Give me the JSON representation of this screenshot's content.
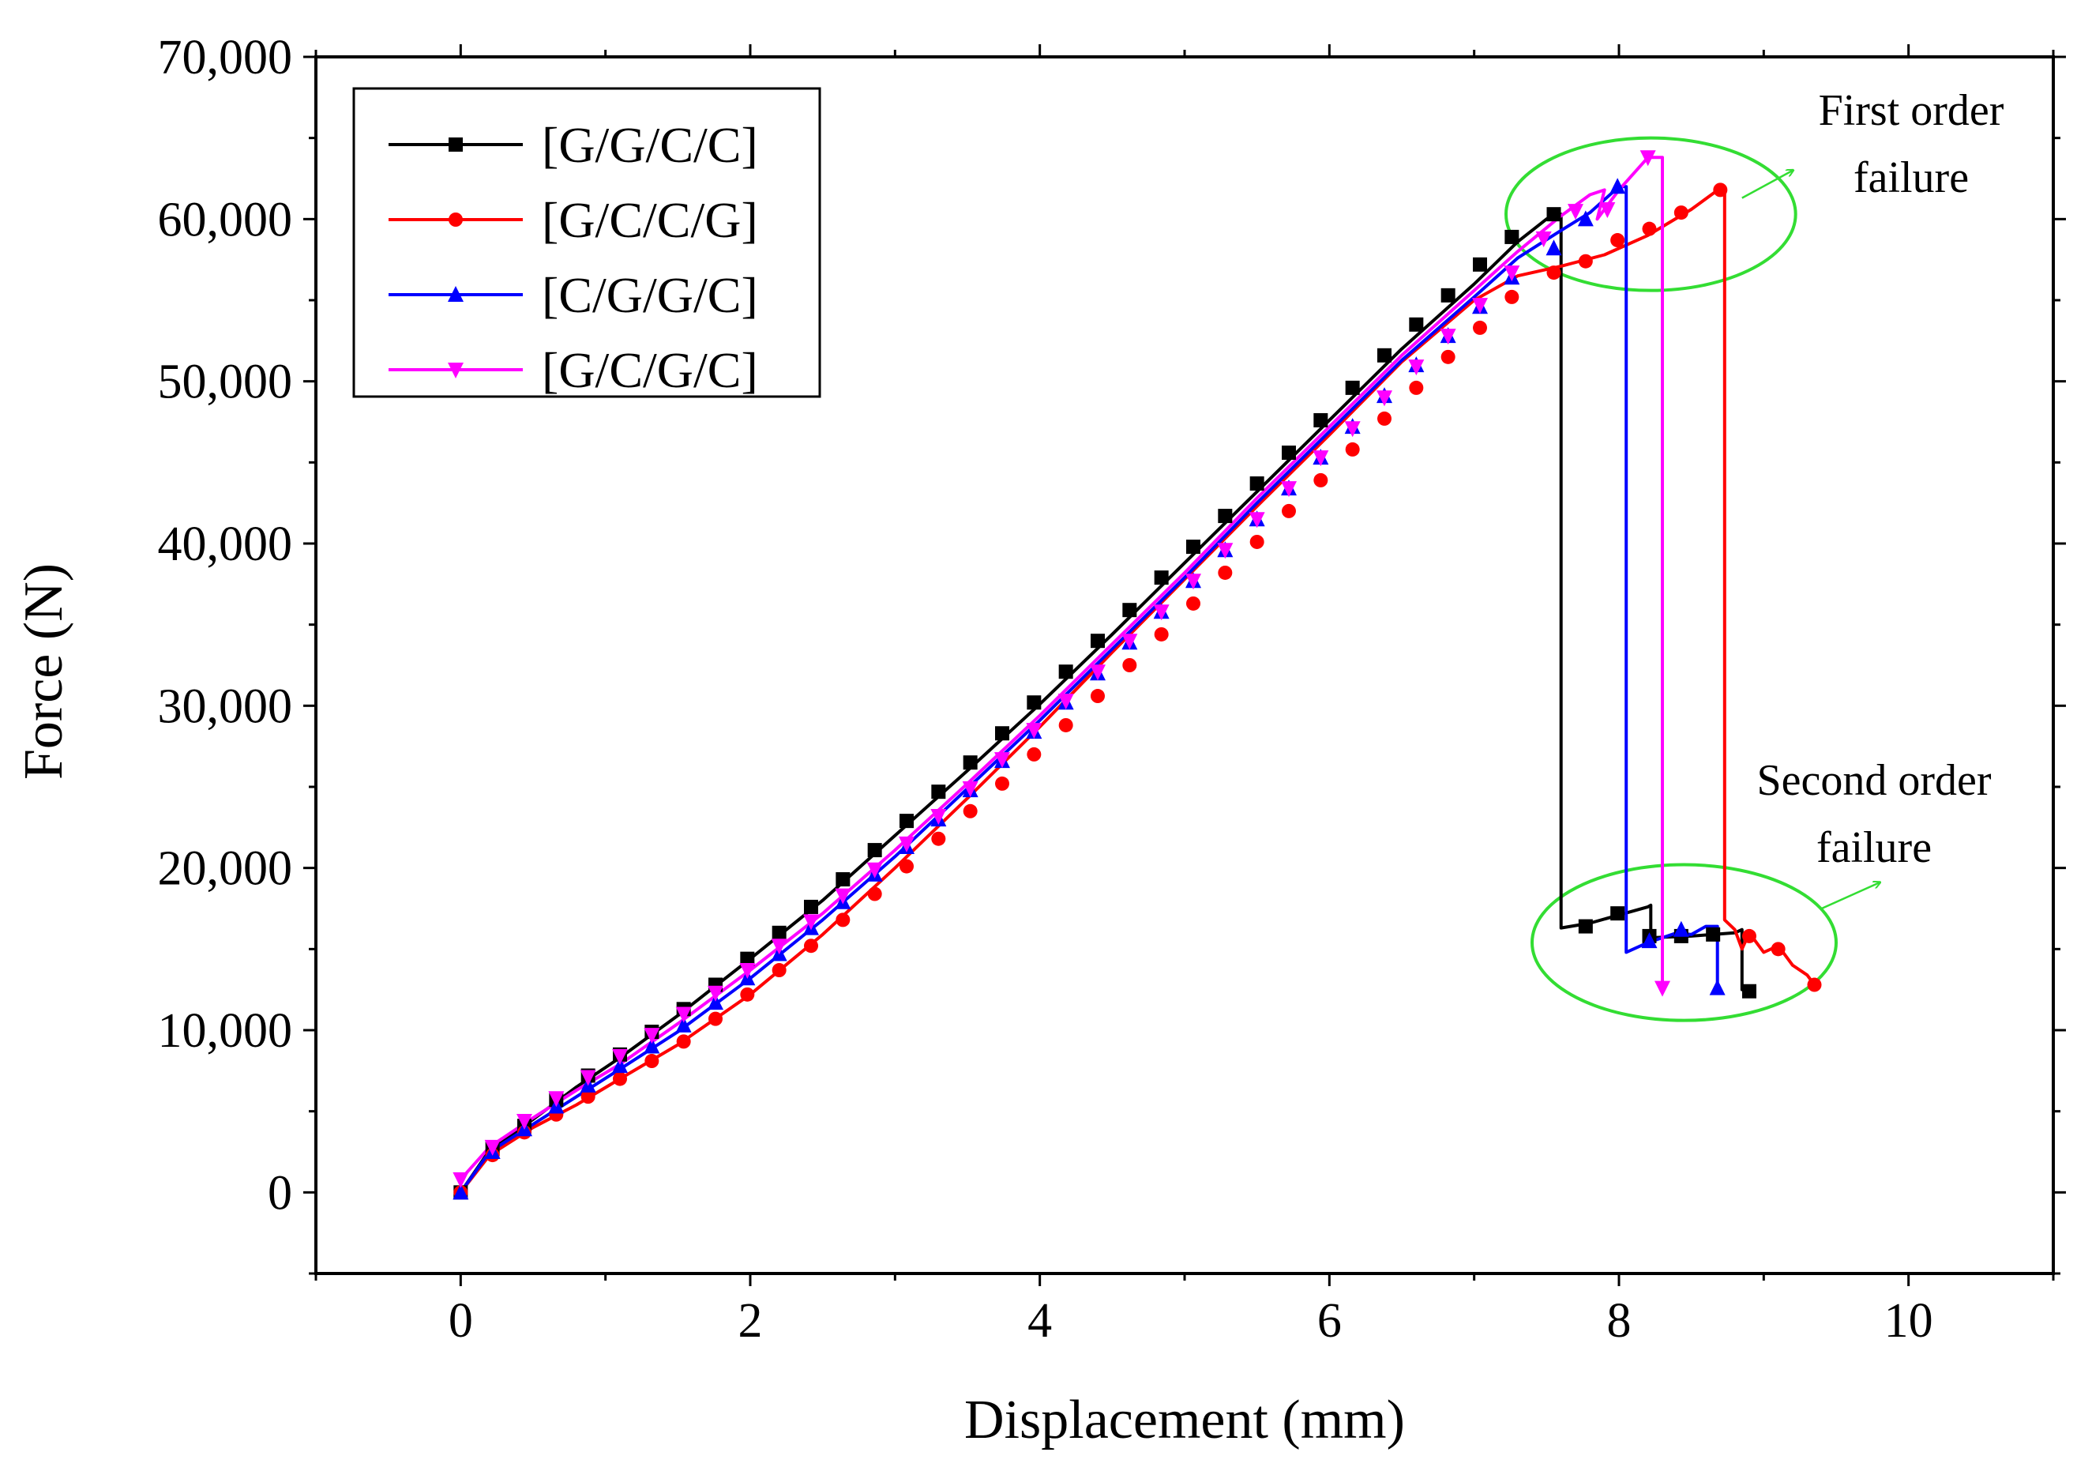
{
  "chart_data": {
    "type": "line",
    "title": "",
    "xlabel": "Displacement (mm)",
    "ylabel": "Force (N)",
    "xlim": [
      -1,
      11
    ],
    "ylim": [
      -5000,
      70000
    ],
    "x_ticks": [
      0,
      2,
      4,
      6,
      8,
      10
    ],
    "x_tick_labels": [
      "0",
      "2",
      "4",
      "6",
      "8",
      "10"
    ],
    "y_ticks": [
      0,
      10000,
      20000,
      30000,
      40000,
      50000,
      60000,
      70000
    ],
    "y_tick_labels": [
      "0",
      "10,000",
      "20,000",
      "30,000",
      "40,000",
      "50,000",
      "60,000",
      "70,000"
    ],
    "legend_position": "top-left",
    "series": [
      {
        "name": "[G/G/C/C]",
        "color": "#000000",
        "marker": "square",
        "curve": [
          [
            0,
            0
          ],
          [
            0.2,
            2600
          ],
          [
            0.5,
            4500
          ],
          [
            0.8,
            6500
          ],
          [
            1.1,
            8300
          ],
          [
            1.5,
            10900
          ],
          [
            2.0,
            14400
          ],
          [
            2.5,
            18000
          ],
          [
            3.0,
            22000
          ],
          [
            3.5,
            26000
          ],
          [
            4.0,
            30100
          ],
          [
            4.5,
            34400
          ],
          [
            5.0,
            38800
          ],
          [
            5.5,
            43200
          ],
          [
            6.0,
            47600
          ],
          [
            6.5,
            52000
          ],
          [
            7.0,
            56000
          ],
          [
            7.3,
            58600
          ],
          [
            7.5,
            60000
          ],
          [
            7.55,
            60300
          ],
          [
            7.6,
            60300
          ],
          [
            7.6,
            16300
          ],
          [
            7.8,
            16600
          ],
          [
            8.0,
            17100
          ],
          [
            8.2,
            17600
          ],
          [
            8.22,
            17700
          ],
          [
            8.22,
            15700
          ],
          [
            8.5,
            15800
          ],
          [
            8.8,
            16000
          ],
          [
            8.85,
            16200
          ],
          [
            8.85,
            12500
          ],
          [
            8.9,
            12400
          ]
        ],
        "markers": [
          [
            0,
            0
          ],
          [
            0.22,
            2700
          ],
          [
            0.44,
            4100
          ],
          [
            0.66,
            5700
          ],
          [
            0.88,
            7200
          ],
          [
            1.1,
            8500
          ],
          [
            1.32,
            9900
          ],
          [
            1.54,
            11300
          ],
          [
            1.76,
            12800
          ],
          [
            1.98,
            14400
          ],
          [
            2.2,
            16000
          ],
          [
            2.42,
            17600
          ],
          [
            2.64,
            19300
          ],
          [
            2.86,
            21100
          ],
          [
            3.08,
            22900
          ],
          [
            3.3,
            24700
          ],
          [
            3.52,
            26500
          ],
          [
            3.74,
            28300
          ],
          [
            3.96,
            30200
          ],
          [
            4.18,
            32100
          ],
          [
            4.4,
            34000
          ],
          [
            4.62,
            35900
          ],
          [
            4.84,
            37900
          ],
          [
            5.06,
            39800
          ],
          [
            5.28,
            41700
          ],
          [
            5.5,
            43700
          ],
          [
            5.72,
            45600
          ],
          [
            5.94,
            47600
          ],
          [
            6.16,
            49600
          ],
          [
            6.38,
            51600
          ],
          [
            6.6,
            53500
          ],
          [
            6.82,
            55300
          ],
          [
            7.04,
            57200
          ],
          [
            7.26,
            58900
          ],
          [
            7.55,
            60300
          ],
          [
            7.77,
            16400
          ],
          [
            7.99,
            17200
          ],
          [
            8.21,
            15800
          ],
          [
            8.43,
            15800
          ],
          [
            8.65,
            15900
          ],
          [
            8.9,
            12400
          ]
        ]
      },
      {
        "name": "[G/C/C/G]",
        "color": "#ff0000",
        "marker": "circle",
        "curve": [
          [
            0,
            0
          ],
          [
            0.2,
            2300
          ],
          [
            0.5,
            4000
          ],
          [
            0.8,
            5400
          ],
          [
            1.1,
            7000
          ],
          [
            1.5,
            9100
          ],
          [
            2.0,
            12200
          ],
          [
            2.5,
            15900
          ],
          [
            3.0,
            20000
          ],
          [
            3.5,
            24300
          ],
          [
            4.0,
            28700
          ],
          [
            4.5,
            33300
          ],
          [
            5.0,
            37800
          ],
          [
            5.5,
            42300
          ],
          [
            6.0,
            46700
          ],
          [
            6.5,
            51200
          ],
          [
            7.0,
            55000
          ],
          [
            7.3,
            56500
          ],
          [
            7.6,
            57100
          ],
          [
            7.9,
            57800
          ],
          [
            8.2,
            59000
          ],
          [
            8.5,
            60600
          ],
          [
            8.7,
            61900
          ],
          [
            8.73,
            61900
          ],
          [
            8.73,
            16800
          ],
          [
            8.8,
            16200
          ],
          [
            8.85,
            15000
          ],
          [
            8.9,
            16000
          ],
          [
            9.0,
            14800
          ],
          [
            9.1,
            15200
          ],
          [
            9.2,
            14000
          ],
          [
            9.3,
            13400
          ],
          [
            9.35,
            12800
          ]
        ],
        "markers": [
          [
            0,
            0
          ],
          [
            0.22,
            2300
          ],
          [
            0.44,
            3700
          ],
          [
            0.66,
            4800
          ],
          [
            0.88,
            5900
          ],
          [
            1.1,
            7000
          ],
          [
            1.32,
            8100
          ],
          [
            1.54,
            9300
          ],
          [
            1.76,
            10700
          ],
          [
            1.98,
            12200
          ],
          [
            2.2,
            13700
          ],
          [
            2.42,
            15200
          ],
          [
            2.64,
            16800
          ],
          [
            2.86,
            18400
          ],
          [
            3.08,
            20100
          ],
          [
            3.3,
            21800
          ],
          [
            3.52,
            23500
          ],
          [
            3.74,
            25200
          ],
          [
            3.96,
            27000
          ],
          [
            4.18,
            28800
          ],
          [
            4.4,
            30600
          ],
          [
            4.62,
            32500
          ],
          [
            4.84,
            34400
          ],
          [
            5.06,
            36300
          ],
          [
            5.28,
            38200
          ],
          [
            5.5,
            40100
          ],
          [
            5.72,
            42000
          ],
          [
            5.94,
            43900
          ],
          [
            6.16,
            45800
          ],
          [
            6.38,
            47700
          ],
          [
            6.6,
            49600
          ],
          [
            6.82,
            51500
          ],
          [
            7.04,
            53300
          ],
          [
            7.26,
            55200
          ],
          [
            7.55,
            56700
          ],
          [
            7.77,
            57400
          ],
          [
            7.99,
            58700
          ],
          [
            8.21,
            59400
          ],
          [
            8.43,
            60400
          ],
          [
            8.7,
            61800
          ],
          [
            8.9,
            15800
          ],
          [
            9.1,
            15000
          ],
          [
            9.35,
            12800
          ]
        ]
      },
      {
        "name": "[C/G/G/C]",
        "color": "#0000ff",
        "marker": "triangle-up",
        "curve": [
          [
            0,
            0
          ],
          [
            0.2,
            2500
          ],
          [
            0.5,
            4200
          ],
          [
            0.8,
            5900
          ],
          [
            1.1,
            7600
          ],
          [
            1.5,
            9900
          ],
          [
            2.0,
            13200
          ],
          [
            2.5,
            16800
          ],
          [
            3.0,
            20700
          ],
          [
            3.5,
            24900
          ],
          [
            4.0,
            29100
          ],
          [
            4.5,
            33500
          ],
          [
            5.0,
            37900
          ],
          [
            5.5,
            42500
          ],
          [
            6.0,
            46900
          ],
          [
            6.5,
            51300
          ],
          [
            7.0,
            55200
          ],
          [
            7.3,
            57600
          ],
          [
            7.6,
            59300
          ],
          [
            7.8,
            60400
          ],
          [
            8.0,
            62000
          ],
          [
            8.05,
            62000
          ],
          [
            8.05,
            14800
          ],
          [
            8.2,
            15400
          ],
          [
            8.4,
            16000
          ],
          [
            8.5,
            15900
          ],
          [
            8.6,
            16400
          ],
          [
            8.68,
            16400
          ],
          [
            8.68,
            12600
          ]
        ],
        "markers": [
          [
            0,
            0
          ],
          [
            0.22,
            2500
          ],
          [
            0.44,
            3900
          ],
          [
            0.66,
            5300
          ],
          [
            0.88,
            6600
          ],
          [
            1.1,
            7800
          ],
          [
            1.32,
            9000
          ],
          [
            1.54,
            10300
          ],
          [
            1.76,
            11700
          ],
          [
            1.98,
            13200
          ],
          [
            2.2,
            14700
          ],
          [
            2.42,
            16300
          ],
          [
            2.64,
            17900
          ],
          [
            2.86,
            19600
          ],
          [
            3.08,
            21300
          ],
          [
            3.3,
            23000
          ],
          [
            3.52,
            24800
          ],
          [
            3.74,
            26600
          ],
          [
            3.96,
            28400
          ],
          [
            4.18,
            30200
          ],
          [
            4.4,
            32000
          ],
          [
            4.62,
            33900
          ],
          [
            4.84,
            35800
          ],
          [
            5.06,
            37700
          ],
          [
            5.28,
            39600
          ],
          [
            5.5,
            41500
          ],
          [
            5.72,
            43400
          ],
          [
            5.94,
            45300
          ],
          [
            6.16,
            47200
          ],
          [
            6.38,
            49100
          ],
          [
            6.6,
            51000
          ],
          [
            6.82,
            52800
          ],
          [
            7.04,
            54600
          ],
          [
            7.26,
            56400
          ],
          [
            7.55,
            58200
          ],
          [
            7.77,
            60000
          ],
          [
            7.99,
            62000
          ],
          [
            8.21,
            15500
          ],
          [
            8.43,
            16200
          ],
          [
            8.68,
            12600
          ]
        ]
      },
      {
        "name": "[G/C/G/C]",
        "color": "#ff00ff",
        "marker": "triangle-down",
        "curve": [
          [
            0,
            800
          ],
          [
            0.2,
            2800
          ],
          [
            0.5,
            4600
          ],
          [
            0.8,
            6300
          ],
          [
            1.1,
            7900
          ],
          [
            1.5,
            10400
          ],
          [
            2.0,
            13700
          ],
          [
            2.5,
            17200
          ],
          [
            3.0,
            21100
          ],
          [
            3.5,
            25200
          ],
          [
            4.0,
            29400
          ],
          [
            4.5,
            33800
          ],
          [
            5.0,
            38200
          ],
          [
            5.5,
            42800
          ],
          [
            6.0,
            47200
          ],
          [
            6.5,
            51600
          ],
          [
            7.0,
            55600
          ],
          [
            7.3,
            58000
          ],
          [
            7.6,
            60200
          ],
          [
            7.8,
            61500
          ],
          [
            7.9,
            61800
          ],
          [
            7.85,
            60000
          ],
          [
            8.0,
            61800
          ],
          [
            8.2,
            63800
          ],
          [
            8.3,
            63800
          ],
          [
            8.3,
            12600
          ]
        ],
        "markers": [
          [
            0,
            800
          ],
          [
            0.22,
            2800
          ],
          [
            0.44,
            4400
          ],
          [
            0.66,
            5800
          ],
          [
            0.88,
            7100
          ],
          [
            1.1,
            8400
          ],
          [
            1.32,
            9700
          ],
          [
            1.54,
            11000
          ],
          [
            1.76,
            12300
          ],
          [
            1.98,
            13700
          ],
          [
            2.2,
            15200
          ],
          [
            2.42,
            16700
          ],
          [
            2.64,
            18300
          ],
          [
            2.86,
            19900
          ],
          [
            3.08,
            21500
          ],
          [
            3.3,
            23200
          ],
          [
            3.52,
            24900
          ],
          [
            3.74,
            26700
          ],
          [
            3.96,
            28500
          ],
          [
            4.18,
            30300
          ],
          [
            4.4,
            32100
          ],
          [
            4.62,
            34000
          ],
          [
            4.84,
            35800
          ],
          [
            5.06,
            37700
          ],
          [
            5.28,
            39600
          ],
          [
            5.5,
            41500
          ],
          [
            5.72,
            43400
          ],
          [
            5.94,
            45300
          ],
          [
            6.16,
            47100
          ],
          [
            6.38,
            49000
          ],
          [
            6.6,
            50900
          ],
          [
            6.82,
            52800
          ],
          [
            7.04,
            54700
          ],
          [
            7.26,
            56700
          ],
          [
            7.48,
            58800
          ],
          [
            7.7,
            60500
          ],
          [
            7.92,
            60600
          ],
          [
            8.2,
            63800
          ],
          [
            8.3,
            12600
          ]
        ]
      }
    ],
    "annotations": [
      {
        "text_lines": [
          "First order",
          "failure"
        ],
        "ellipse_center": [
          8.22,
          60300
        ],
        "ellipse_radii": [
          1.0,
          4700
        ],
        "arrow_from": [
          8.85,
          61300
        ],
        "arrow_to": [
          9.2,
          63000
        ],
        "color": "#33dd33"
      },
      {
        "text_lines": [
          "Second order",
          "failure"
        ],
        "ellipse_center": [
          8.45,
          15400
        ],
        "ellipse_radii": [
          1.05,
          4800
        ],
        "arrow_from": [
          9.4,
          17500
        ],
        "arrow_to": [
          9.8,
          19100
        ],
        "color": "#33dd33"
      }
    ]
  }
}
